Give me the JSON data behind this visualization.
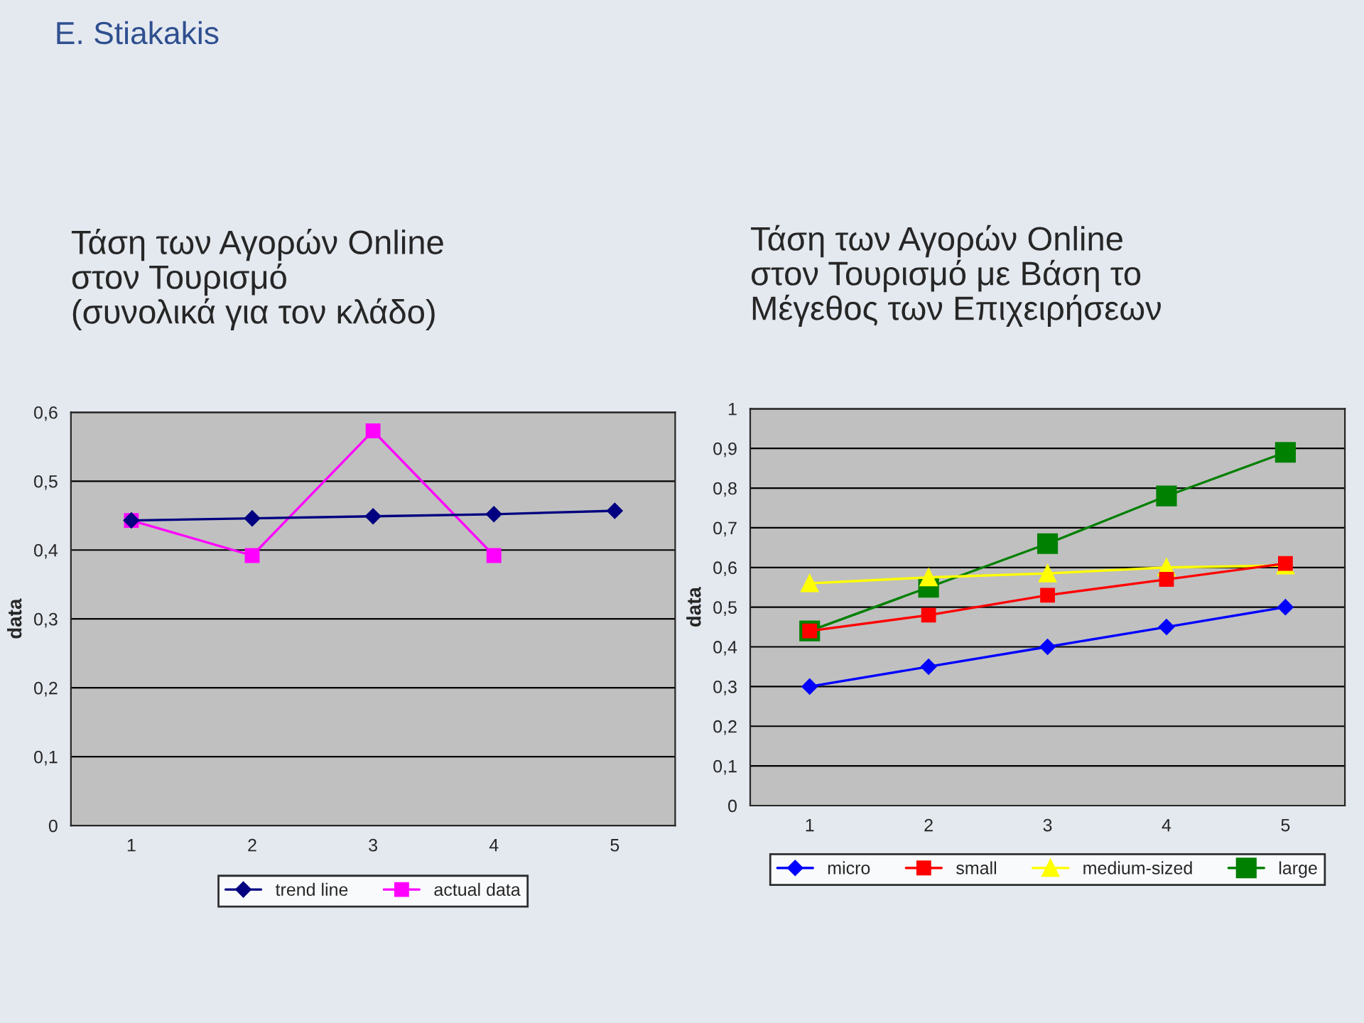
{
  "chart_data": [
    {
      "type": "line",
      "title": "Τάση των Αγορών Online\nστον Τουρισμό\n(συνολικά για τον κλάδο)",
      "ylabel": "data",
      "annotations": [
        "E. Stiakakis"
      ],
      "categories": [
        "1",
        "2",
        "3",
        "4",
        "5"
      ],
      "series": [
        {
          "name": "trend line",
          "color": "#000080",
          "marker": "diamond",
          "values": [
            0.443,
            0.446,
            0.449,
            0.452,
            0.457
          ]
        },
        {
          "name": "actual data",
          "color": "#ff00ff",
          "marker": "square",
          "values": [
            0.443,
            0.392,
            0.573,
            0.392,
            null
          ]
        }
      ],
      "ylim": [
        0,
        0.6
      ],
      "yticks": [
        0,
        {
          "value": 0.1,
          "label": "0,1"
        },
        {
          "value": 0.2,
          "label": "0,2"
        },
        {
          "value": 0.3,
          "label": "0,3"
        },
        {
          "value": 0.4,
          "label": "0,4"
        },
        {
          "value": 0.5,
          "label": "0,5"
        },
        {
          "value": 0.6,
          "label": "0,6"
        }
      ],
      "grid": "y",
      "legend": "bottom",
      "line_style": "solid"
    },
    {
      "type": "line",
      "title": "Τάση των Αγορών Online\nστον Τουρισμό με Βάση το\nΜέγεθος των Επιχειρήσεων",
      "ylabel": "data",
      "categories": [
        "1",
        "2",
        "3",
        "4",
        "5"
      ],
      "series": [
        {
          "name": "micro",
          "color": "#0000ff",
          "marker": "diamond",
          "values": [
            0.3,
            0.35,
            0.4,
            0.45,
            0.5
          ]
        },
        {
          "name": "small",
          "color": "#ff0000",
          "marker": "square",
          "values": [
            0.44,
            0.48,
            0.53,
            0.57,
            0.61
          ]
        },
        {
          "name": "medium-sized",
          "color": "#ffff00",
          "marker": "triangle",
          "values": [
            0.56,
            0.575,
            0.585,
            0.6,
            0.605
          ]
        },
        {
          "name": "large",
          "color": "#008000",
          "marker": "square",
          "values": [
            0.44,
            0.55,
            0.66,
            0.78,
            0.89
          ]
        }
      ],
      "ylim": [
        0,
        1
      ],
      "yticks": [
        0,
        {
          "value": 0.1,
          "label": "0,1"
        },
        {
          "value": 0.2,
          "label": "0,2"
        },
        {
          "value": 0.3,
          "label": "0,3"
        },
        {
          "value": 0.4,
          "label": "0,4"
        },
        {
          "value": 0.5,
          "label": "0,5"
        },
        {
          "value": 0.6,
          "label": "0,6"
        },
        {
          "value": 0.7,
          "label": "0,7"
        },
        {
          "value": 0.8,
          "label": "0,8"
        },
        {
          "value": 0.9,
          "label": "0,9"
        },
        1
      ],
      "grid": "y",
      "legend": "bottom",
      "line_style": "solid"
    }
  ]
}
